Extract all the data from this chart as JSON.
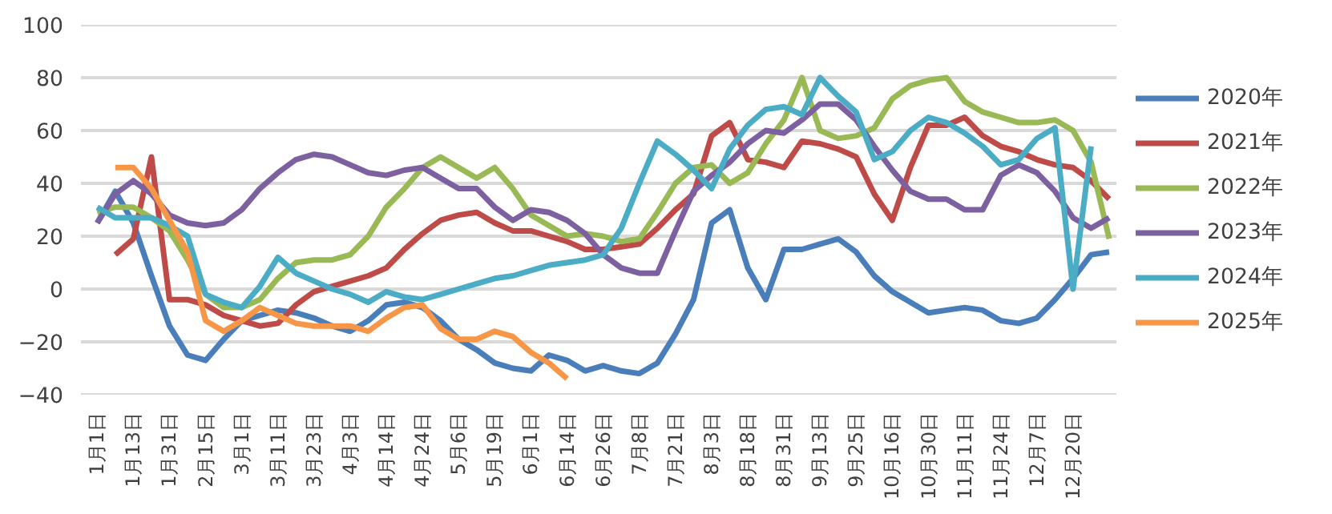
{
  "chart_data": {
    "type": "line",
    "ylim": [
      -40,
      100
    ],
    "yticks": [
      -40,
      -20,
      0,
      20,
      40,
      60,
      80,
      100
    ],
    "grid": "y",
    "legend": "right",
    "line_style": "solid",
    "marker": "none",
    "categories": [
      "1月1日",
      null,
      "1月13日",
      null,
      "1月31日",
      null,
      "2月15日",
      null,
      "3月1日",
      null,
      "3月11日",
      null,
      "3月23日",
      null,
      "4月3日",
      null,
      "4月14日",
      null,
      "4月24日",
      null,
      "5月6日",
      null,
      "5月19日",
      null,
      "6月1日",
      null,
      "6月14日",
      null,
      "6月26日",
      null,
      "7月8日",
      null,
      "7月21日",
      null,
      "8月3日",
      null,
      "8月18日",
      null,
      "8月31日",
      null,
      "9月13日",
      null,
      "9月25日",
      null,
      "10月16日",
      null,
      "10月30日",
      null,
      "11月11日",
      null,
      "11月24日",
      null,
      "12月7日",
      null,
      "12月20日",
      null,
      null
    ],
    "series": [
      {
        "name": "2020年",
        "color": "#4a7ebb",
        "values": [
          25,
          37,
          25,
          5,
          -14,
          -25,
          -27,
          -19,
          -12,
          -10,
          -8,
          -9,
          -11,
          -14,
          -16,
          -12,
          -6,
          -5,
          -7,
          -12,
          -19,
          -23,
          -28,
          -30,
          -31,
          -25,
          -27,
          -31,
          -29,
          -31,
          -32,
          -28,
          -17,
          -4,
          25,
          30,
          8,
          -4,
          15,
          15,
          17,
          19,
          14,
          5,
          -1,
          -5,
          -9,
          -8,
          -7,
          -8,
          -12,
          -13,
          -11,
          -4,
          4,
          13,
          14
        ]
      },
      {
        "name": "2021年",
        "color": "#be4b48",
        "values": [
          null,
          13,
          19,
          50,
          -4,
          -4,
          -6,
          -10,
          -12,
          -14,
          -13,
          -6,
          -1,
          1,
          3,
          5,
          8,
          15,
          21,
          26,
          28,
          29,
          25,
          22,
          22,
          20,
          18,
          15,
          15,
          16,
          17,
          23,
          30,
          36,
          58,
          63,
          49,
          48,
          46,
          56,
          55,
          53,
          50,
          36,
          26,
          46,
          62,
          62,
          65,
          58,
          54,
          52,
          49,
          47,
          46,
          41,
          34
        ]
      },
      {
        "name": "2022年",
        "color": "#98b954",
        "values": [
          29,
          31,
          31,
          27,
          22,
          11,
          -2,
          -7,
          -7,
          -4,
          4,
          10,
          11,
          11,
          13,
          20,
          31,
          38,
          46,
          50,
          46,
          42,
          46,
          38,
          28,
          24,
          20,
          21,
          20,
          18,
          19,
          29,
          40,
          46,
          47,
          40,
          44,
          55,
          64,
          80,
          60,
          57,
          58,
          61,
          72,
          77,
          79,
          80,
          71,
          67,
          65,
          63,
          63,
          64,
          60,
          48,
          19
        ]
      },
      {
        "name": "2023年",
        "color": "#7d60a0",
        "values": [
          25,
          36,
          41,
          36,
          28,
          25,
          24,
          25,
          30,
          38,
          44,
          49,
          51,
          50,
          47,
          44,
          43,
          45,
          46,
          42,
          38,
          38,
          31,
          26,
          30,
          29,
          26,
          21,
          13,
          8,
          6,
          6,
          22,
          37,
          43,
          48,
          55,
          60,
          59,
          64,
          70,
          70,
          64,
          54,
          45,
          37,
          34,
          34,
          30,
          30,
          43,
          47,
          44,
          37,
          27,
          23,
          27
        ]
      },
      {
        "name": "2024年",
        "color": "#4bacc6",
        "values": [
          31,
          27,
          27,
          27,
          24,
          20,
          -2,
          -5,
          -7,
          1,
          12,
          6,
          3,
          0,
          -2,
          -5,
          -1,
          -3,
          -4,
          -2,
          0,
          2,
          4,
          5,
          7,
          9,
          10,
          11,
          13,
          23,
          40,
          56,
          51,
          45,
          38,
          53,
          62,
          68,
          69,
          66,
          80,
          73,
          67,
          49,
          52,
          60,
          65,
          63,
          59,
          54,
          47,
          49,
          57,
          61,
          0,
          54,
          null
        ]
      },
      {
        "name": "2025年",
        "color": "#f79646",
        "values": [
          null,
          46,
          46,
          38,
          26,
          14,
          -12,
          -16,
          -12,
          -7,
          -10,
          -13,
          -14,
          -14,
          -14,
          -16,
          -11,
          -7,
          -6,
          -15,
          -19,
          -19,
          -16,
          -18,
          -24,
          -28,
          -34,
          null,
          null,
          null,
          null,
          null,
          null,
          null,
          null,
          null,
          null,
          null,
          null,
          null,
          null,
          null,
          null,
          null,
          null,
          null,
          null,
          null,
          null,
          null,
          null,
          null,
          null,
          null,
          null,
          null,
          null
        ]
      }
    ]
  }
}
